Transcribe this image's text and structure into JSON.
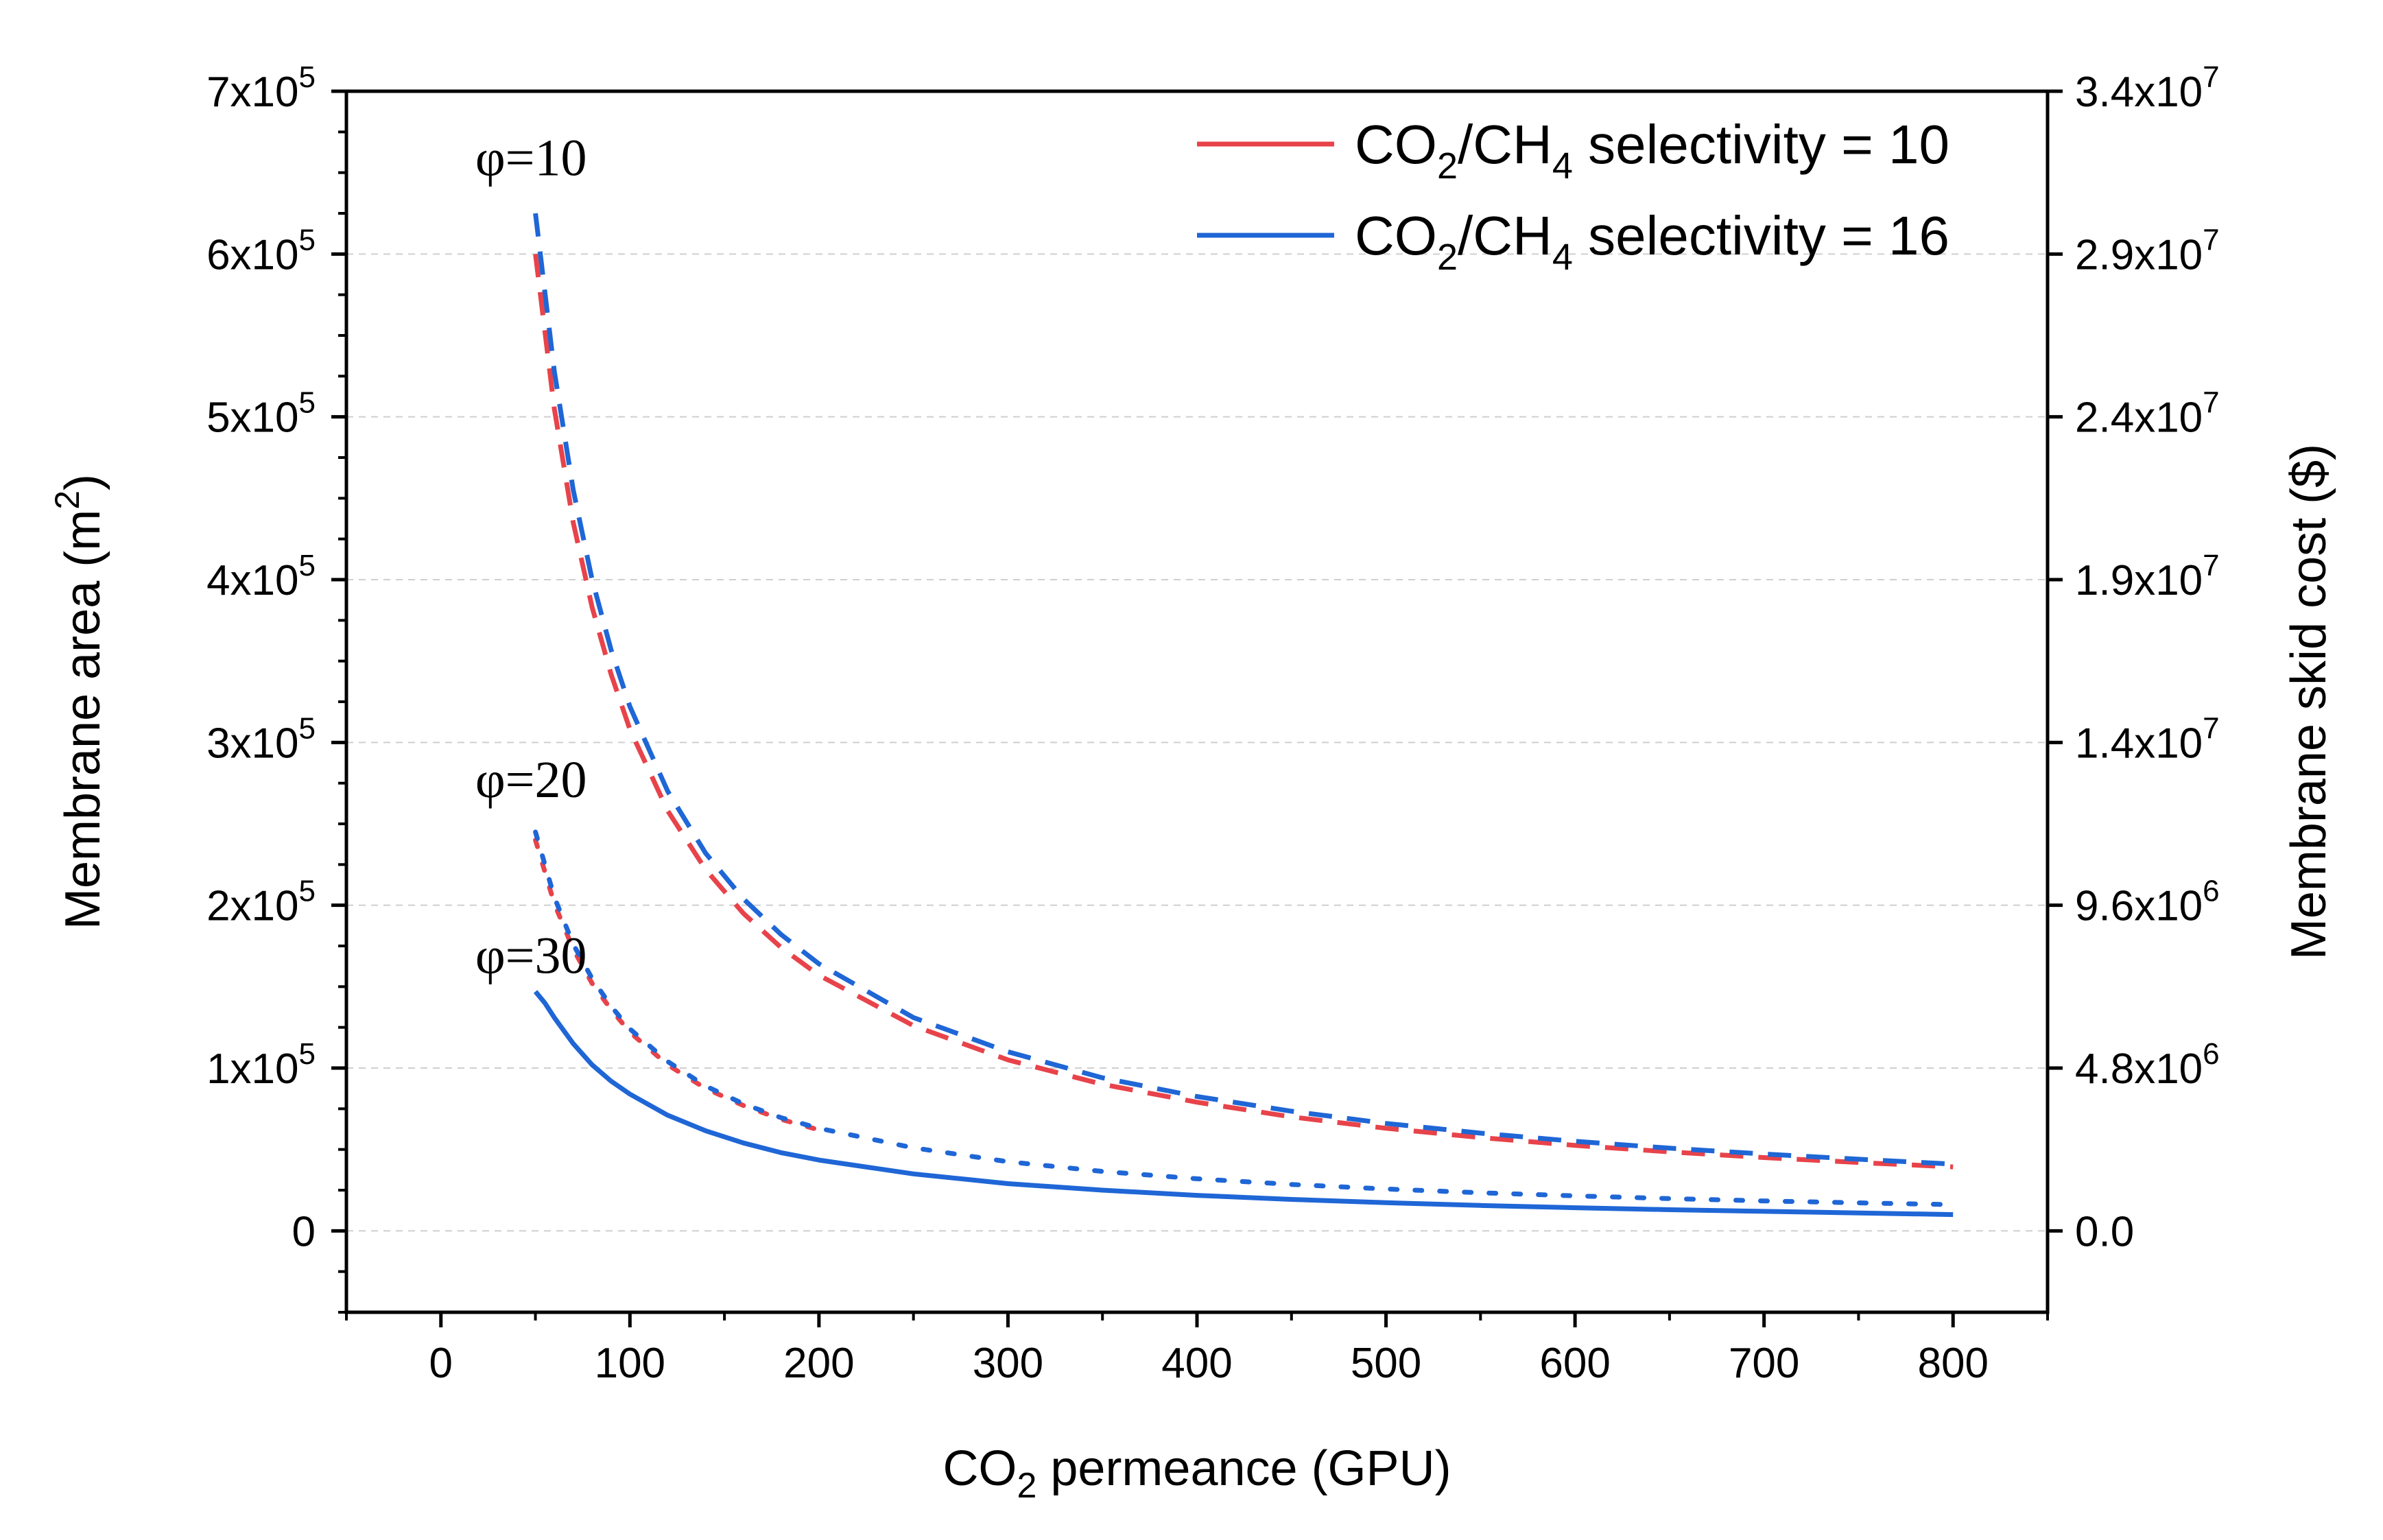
{
  "chart_data": {
    "type": "line",
    "x_axis": {
      "label_main": "CO",
      "label_sub": "2",
      "label_rest": " permeance (GPU)",
      "range": [
        -50,
        850
      ],
      "ticks": [
        0,
        100,
        200,
        300,
        400,
        500,
        600,
        700,
        800
      ],
      "tick_labels": [
        "0",
        "100",
        "200",
        "300",
        "400",
        "500",
        "600",
        "700",
        "800"
      ]
    },
    "y_axis_left": {
      "label_main": "Membrane area (m",
      "label_sup": "2",
      "label_end": ")",
      "range": [
        -50000,
        700000
      ],
      "ticks": [
        {
          "value": 0,
          "label": "0",
          "exp": ""
        },
        {
          "value": 100000,
          "label": "1x10",
          "exp": "5"
        },
        {
          "value": 200000,
          "label": "2x10",
          "exp": "5"
        },
        {
          "value": 300000,
          "label": "3x10",
          "exp": "5"
        },
        {
          "value": 400000,
          "label": "4x10",
          "exp": "5"
        },
        {
          "value": 500000,
          "label": "5x10",
          "exp": "5"
        },
        {
          "value": 600000,
          "label": "6x10",
          "exp": "5"
        },
        {
          "value": 700000,
          "label": "7x10",
          "exp": "5"
        }
      ]
    },
    "y_axis_right": {
      "label": "Membrane skid cost ($)",
      "ticks": [
        {
          "label": "0.0",
          "exp": ""
        },
        {
          "label": "4.8x10",
          "exp": "6"
        },
        {
          "label": "9.6x10",
          "exp": "6"
        },
        {
          "label": "1.4x10",
          "exp": "7"
        },
        {
          "label": "1.9x10",
          "exp": "7"
        },
        {
          "label": "2.4x10",
          "exp": "7"
        },
        {
          "label": "2.9x10",
          "exp": "7"
        },
        {
          "label": "3.4x10",
          "exp": "7"
        }
      ]
    },
    "legend": {
      "position": "top-right",
      "entries": [
        {
          "color": "#e8434a",
          "text_a": "CO",
          "sub_a": "2",
          "text_b": "/CH",
          "sub_b": "4",
          "text_c": " selectivity = 10"
        },
        {
          "color": "#1f66d6",
          "text_a": "CO",
          "sub_a": "2",
          "text_b": "/CH",
          "sub_b": "4",
          "text_c": " selectivity = 16"
        }
      ]
    },
    "annotations": [
      {
        "text": "φ=10",
        "x": 50,
        "y": 640000
      },
      {
        "text": "φ=20",
        "x": 50,
        "y": 258000
      },
      {
        "text": "φ=30",
        "x": 50,
        "y": 150000
      }
    ],
    "series": [
      {
        "name": "selectivity 10, φ=10",
        "color": "#e8434a",
        "style": "dashed",
        "x": [
          50,
          60,
          70,
          80,
          90,
          100,
          120,
          140,
          160,
          180,
          200,
          250,
          300,
          350,
          400,
          450,
          500,
          550,
          600,
          650,
          700,
          750,
          800
        ],
        "y": [
          600000,
          505000,
          435000,
          383000,
          342000,
          308000,
          258000,
          222000,
          195000,
          174000,
          157000,
          126000,
          105000,
          90000,
          79000,
          70000,
          63000,
          57300,
          52500,
          48500,
          45000,
          42000,
          39300
        ]
      },
      {
        "name": "selectivity 16, φ=10",
        "color": "#1f66d6",
        "style": "dashed",
        "x": [
          50,
          60,
          70,
          80,
          90,
          100,
          120,
          140,
          160,
          180,
          200,
          250,
          300,
          350,
          400,
          450,
          500,
          550,
          600,
          650,
          700,
          750,
          800
        ],
        "y": [
          625000,
          528000,
          455000,
          400000,
          357000,
          322000,
          270000,
          232000,
          204000,
          182000,
          164000,
          131000,
          110000,
          94000,
          82500,
          73500,
          66000,
          60000,
          55000,
          50800,
          47200,
          44000,
          41000
        ]
      },
      {
        "name": "selectivity 10, φ=20",
        "color": "#e8434a",
        "style": "dotted",
        "x": [
          50,
          60,
          70,
          80,
          90,
          100,
          120,
          140,
          160,
          180,
          200
        ],
        "y": [
          240000,
          201000,
          173000,
          152000,
          136000,
          122000,
          102000,
          87500,
          77000,
          68500,
          62000
        ]
      },
      {
        "name": "selectivity 16, φ=20",
        "color": "#1f66d6",
        "style": "dotted",
        "x": [
          50,
          60,
          70,
          80,
          90,
          100,
          120,
          140,
          160,
          180,
          200,
          250,
          300,
          350,
          400,
          450,
          500,
          550,
          600,
          650,
          700,
          750,
          800
        ],
        "y": [
          245000,
          205000,
          176000,
          155000,
          138000,
          124000,
          104000,
          89000,
          78000,
          69500,
          63000,
          51000,
          42500,
          36500,
          32000,
          28500,
          25700,
          23400,
          21500,
          19800,
          18400,
          17200,
          16100
        ]
      },
      {
        "name": "selectivity 16, φ=30",
        "color": "#1f66d6",
        "style": "solid",
        "x": [
          50,
          55,
          60,
          70,
          80,
          90,
          100,
          120,
          140,
          160,
          180,
          200,
          250,
          300,
          350,
          400,
          450,
          500,
          550,
          600,
          650,
          700,
          750,
          800
        ],
        "y": [
          147000,
          140000,
          131000,
          115000,
          102000,
          92000,
          84000,
          71000,
          61500,
          54000,
          48000,
          43500,
          35000,
          29000,
          25000,
          21800,
          19300,
          17300,
          15600,
          14200,
          13000,
          12000,
          11000,
          10000
        ]
      }
    ]
  }
}
